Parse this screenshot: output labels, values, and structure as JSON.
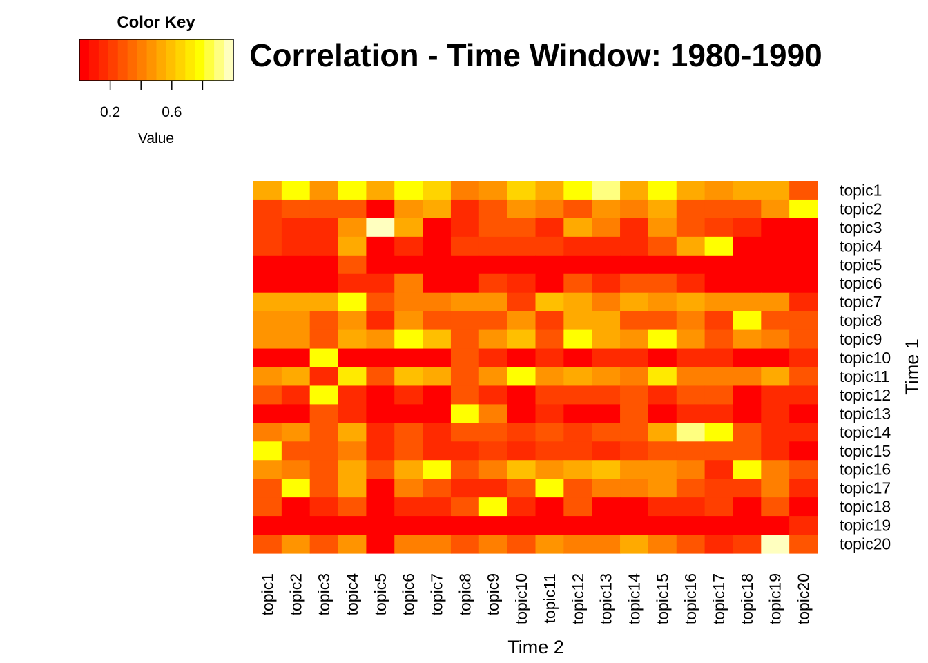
{
  "chart_data": {
    "type": "heatmap",
    "title": "Correlation - Time Window: 1980-1990",
    "xlabel": "Time 2",
    "ylabel": "Time 1",
    "color_key": {
      "title": "Color Key",
      "label": "Value",
      "ticks": [
        0.2,
        0.4,
        0.6,
        0.8
      ],
      "tick_labels": [
        "0.2",
        "0.6"
      ],
      "range": [
        0.0,
        1.0
      ],
      "colors": [
        "#FF0000",
        "#FF1500",
        "#FF2A00",
        "#FF3F00",
        "#FF5500",
        "#FF6A00",
        "#FF7F00",
        "#FF9400",
        "#FFAA00",
        "#FFBF00",
        "#FFD400",
        "#FFEA00",
        "#FFFF00",
        "#FFFF40",
        "#FFFF80",
        "#FFFFBF"
      ]
    },
    "x_labels": [
      "topic1",
      "topic2",
      "topic3",
      "topic4",
      "topic5",
      "topic6",
      "topic7",
      "topic8",
      "topic9",
      "topic10",
      "topic11",
      "topic12",
      "topic13",
      "topic14",
      "topic15",
      "topic16",
      "topic17",
      "topic18",
      "topic19",
      "topic20"
    ],
    "y_labels": [
      "topic1",
      "topic2",
      "topic3",
      "topic4",
      "topic5",
      "topic6",
      "topic7",
      "topic8",
      "topic9",
      "topic10",
      "topic11",
      "topic12",
      "topic13",
      "topic14",
      "topic15",
      "topic16",
      "topic17",
      "topic18",
      "topic19",
      "topic20"
    ],
    "values": [
      [
        0.56,
        0.78,
        0.44,
        0.81,
        0.5,
        0.78,
        0.66,
        0.38,
        0.44,
        0.66,
        0.56,
        0.78,
        0.88,
        0.56,
        0.81,
        0.56,
        0.44,
        0.5,
        0.5,
        0.31
      ],
      [
        0.19,
        0.31,
        0.25,
        0.31,
        0.06,
        0.44,
        0.5,
        0.13,
        0.31,
        0.44,
        0.38,
        0.31,
        0.44,
        0.38,
        0.56,
        0.31,
        0.25,
        0.25,
        0.44,
        0.78
      ],
      [
        0.19,
        0.13,
        0.13,
        0.44,
        0.94,
        0.5,
        0.06,
        0.13,
        0.25,
        0.31,
        0.13,
        0.5,
        0.38,
        0.13,
        0.44,
        0.31,
        0.19,
        0.13,
        0.06,
        0.06
      ],
      [
        0.19,
        0.13,
        0.13,
        0.5,
        0.06,
        0.13,
        0.06,
        0.19,
        0.19,
        0.19,
        0.19,
        0.13,
        0.13,
        0.13,
        0.31,
        0.56,
        0.81,
        0.06,
        0.06,
        0.06
      ],
      [
        0.06,
        0.06,
        0.06,
        0.25,
        0.06,
        0.06,
        0.06,
        0.06,
        0.06,
        0.06,
        0.06,
        0.06,
        0.06,
        0.06,
        0.06,
        0.06,
        0.06,
        0.06,
        0.06,
        0.06
      ],
      [
        0.06,
        0.06,
        0.06,
        0.13,
        0.13,
        0.38,
        0.06,
        0.06,
        0.19,
        0.13,
        0.06,
        0.31,
        0.13,
        0.25,
        0.25,
        0.13,
        0.06,
        0.06,
        0.06,
        0.06
      ],
      [
        0.56,
        0.56,
        0.5,
        0.78,
        0.25,
        0.38,
        0.38,
        0.44,
        0.44,
        0.19,
        0.62,
        0.5,
        0.38,
        0.56,
        0.44,
        0.56,
        0.44,
        0.44,
        0.44,
        0.13
      ],
      [
        0.44,
        0.44,
        0.31,
        0.44,
        0.13,
        0.44,
        0.31,
        0.25,
        0.25,
        0.44,
        0.19,
        0.5,
        0.5,
        0.31,
        0.31,
        0.38,
        0.19,
        0.81,
        0.31,
        0.25
      ],
      [
        0.44,
        0.44,
        0.31,
        0.56,
        0.44,
        0.78,
        0.62,
        0.31,
        0.44,
        0.62,
        0.25,
        0.78,
        0.56,
        0.44,
        0.78,
        0.44,
        0.31,
        0.44,
        0.38,
        0.31
      ],
      [
        0.06,
        0.06,
        0.78,
        0.06,
        0.06,
        0.06,
        0.06,
        0.25,
        0.13,
        0.06,
        0.13,
        0.06,
        0.13,
        0.13,
        0.06,
        0.13,
        0.13,
        0.06,
        0.06,
        0.13
      ],
      [
        0.44,
        0.5,
        0.13,
        0.69,
        0.31,
        0.62,
        0.56,
        0.25,
        0.44,
        0.78,
        0.44,
        0.5,
        0.44,
        0.38,
        0.69,
        0.38,
        0.38,
        0.38,
        0.5,
        0.25
      ],
      [
        0.25,
        0.13,
        0.78,
        0.13,
        0.06,
        0.13,
        0.06,
        0.25,
        0.13,
        0.06,
        0.19,
        0.19,
        0.19,
        0.25,
        0.13,
        0.31,
        0.25,
        0.06,
        0.13,
        0.13
      ],
      [
        0.06,
        0.06,
        0.25,
        0.13,
        0.06,
        0.06,
        0.06,
        0.78,
        0.38,
        0.06,
        0.13,
        0.06,
        0.06,
        0.25,
        0.06,
        0.13,
        0.13,
        0.06,
        0.13,
        0.06
      ],
      [
        0.38,
        0.44,
        0.31,
        0.56,
        0.13,
        0.31,
        0.13,
        0.31,
        0.31,
        0.19,
        0.25,
        0.19,
        0.25,
        0.25,
        0.5,
        0.88,
        0.75,
        0.31,
        0.13,
        0.13
      ],
      [
        0.78,
        0.25,
        0.25,
        0.38,
        0.13,
        0.25,
        0.13,
        0.13,
        0.19,
        0.13,
        0.19,
        0.19,
        0.13,
        0.19,
        0.31,
        0.31,
        0.25,
        0.25,
        0.13,
        0.06
      ],
      [
        0.44,
        0.38,
        0.25,
        0.56,
        0.25,
        0.5,
        0.78,
        0.31,
        0.38,
        0.62,
        0.44,
        0.56,
        0.62,
        0.44,
        0.44,
        0.38,
        0.13,
        0.78,
        0.38,
        0.25
      ],
      [
        0.31,
        0.81,
        0.25,
        0.5,
        0.06,
        0.38,
        0.31,
        0.13,
        0.13,
        0.31,
        0.75,
        0.31,
        0.38,
        0.38,
        0.44,
        0.31,
        0.19,
        0.19,
        0.38,
        0.13
      ],
      [
        0.25,
        0.06,
        0.13,
        0.25,
        0.06,
        0.13,
        0.13,
        0.25,
        0.81,
        0.13,
        0.06,
        0.25,
        0.06,
        0.06,
        0.13,
        0.13,
        0.19,
        0.06,
        0.31,
        0.06
      ],
      [
        0.06,
        0.06,
        0.06,
        0.06,
        0.06,
        0.06,
        0.06,
        0.06,
        0.06,
        0.06,
        0.06,
        0.06,
        0.06,
        0.06,
        0.06,
        0.06,
        0.06,
        0.06,
        0.06,
        0.13
      ],
      [
        0.31,
        0.44,
        0.31,
        0.44,
        0.06,
        0.38,
        0.38,
        0.25,
        0.38,
        0.31,
        0.44,
        0.38,
        0.38,
        0.5,
        0.38,
        0.31,
        0.13,
        0.19,
        0.94,
        0.31
      ]
    ]
  }
}
